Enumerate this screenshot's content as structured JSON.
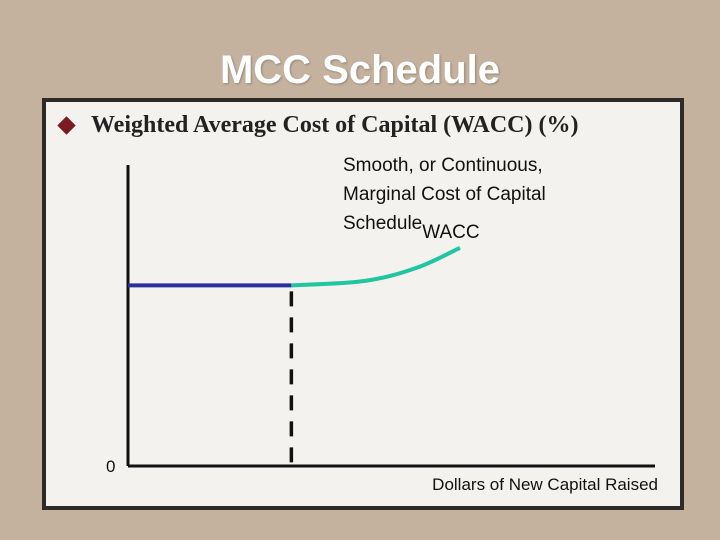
{
  "slide": {
    "title": "MCC Schedule",
    "bullet_text": "Weighted Average Cost of Capital (WACC) (%)"
  },
  "colors": {
    "background": "#c4b29e",
    "panel": "#f3f2ef",
    "bullet": "#7a1a22",
    "flat_segment": "#2b2f9e",
    "rising_segment": "#1fc6a0",
    "axis": "#111111"
  },
  "chart_data": {
    "type": "line",
    "title": "",
    "xlabel": "Dollars of New Capital Raised",
    "ylabel": "",
    "x_origin_label": "0",
    "curve_label": [
      "Smooth, or Continuous,",
      "Marginal Cost of Capital",
      "Schedule"
    ],
    "curve_label_suffix": "WACC",
    "xlim": [
      0,
      10
    ],
    "ylim": [
      0,
      10
    ],
    "break_point_x": 3.1,
    "series": [
      {
        "segment": "flat",
        "x": [
          0,
          3.1
        ],
        "y": [
          6.0,
          6.0
        ]
      },
      {
        "segment": "rising",
        "x": [
          3.1,
          4.5,
          5.5,
          6.3
        ],
        "y": [
          6.0,
          6.15,
          6.6,
          7.25
        ]
      }
    ],
    "grid": false,
    "legend": "none"
  }
}
